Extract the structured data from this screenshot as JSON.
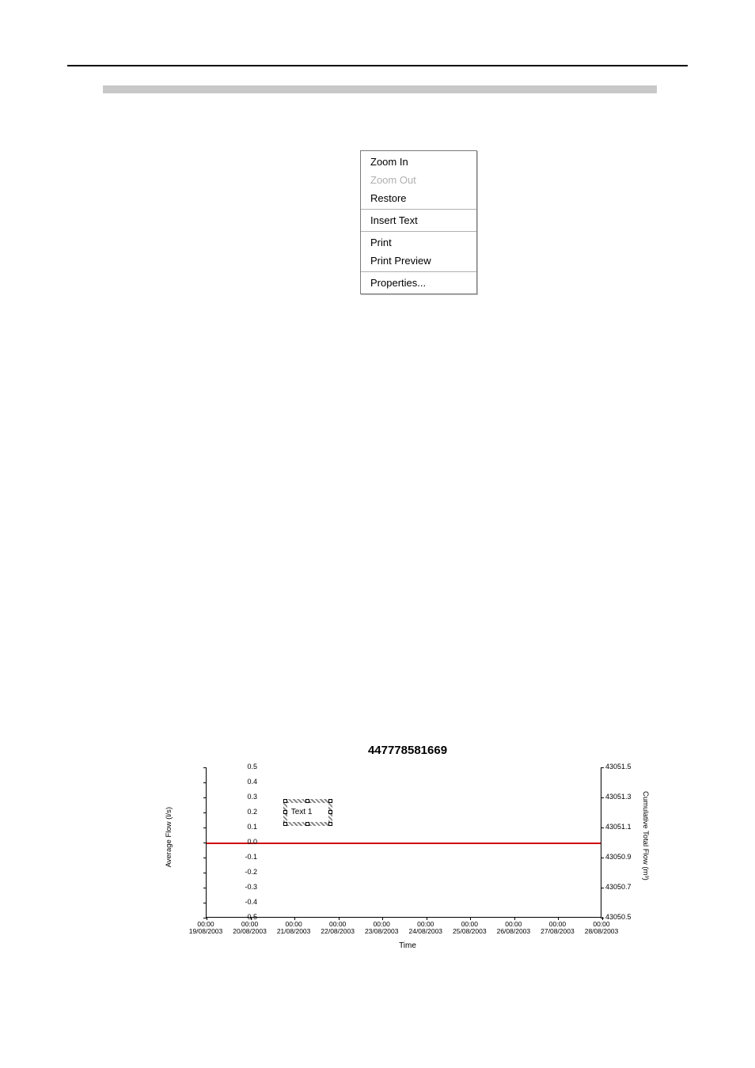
{
  "context_menu": {
    "groups": [
      [
        {
          "label": "Zoom In",
          "disabled": false
        },
        {
          "label": "Zoom Out",
          "disabled": true
        },
        {
          "label": "Restore",
          "disabled": false
        }
      ],
      [
        {
          "label": "Insert Text",
          "disabled": false
        }
      ],
      [
        {
          "label": "Print",
          "disabled": false
        },
        {
          "label": "Print Preview",
          "disabled": false
        }
      ],
      [
        {
          "label": "Properties...",
          "disabled": false
        }
      ]
    ]
  },
  "chart": {
    "type": "line",
    "title": "447778581669",
    "title_fontsize": 15,
    "xlabel": "Time",
    "ylabel_left": "Average Flow (l/s)",
    "ylabel_right": "Cumulative Total Flow (m³)",
    "background_color": "#ffffff",
    "axis_color": "#000000",
    "line_color": "#d00000",
    "text_color": "#000000",
    "tick_fontsize": 9,
    "label_fontsize": 10,
    "left_axis": {
      "ylim": [
        -0.5,
        0.5
      ],
      "ticks": [
        0.5,
        0.4,
        0.3,
        0.2,
        0.1,
        0.0,
        -0.1,
        -0.2,
        -0.3,
        -0.4,
        -0.5
      ]
    },
    "right_axis": {
      "ylim": [
        43050.5,
        43051.5
      ],
      "ticks": [
        43051.5,
        43051.3,
        43051.1,
        43050.9,
        43050.7,
        43050.5
      ]
    },
    "x_axis": {
      "ticks": [
        {
          "time": "00:00",
          "date": "19/08/2003"
        },
        {
          "time": "00:00",
          "date": "20/08/2003"
        },
        {
          "time": "00:00",
          "date": "21/08/2003"
        },
        {
          "time": "00:00",
          "date": "22/08/2003"
        },
        {
          "time": "00:00",
          "date": "23/08/2003"
        },
        {
          "time": "00:00",
          "date": "24/08/2003"
        },
        {
          "time": "00:00",
          "date": "25/08/2003"
        },
        {
          "time": "00:00",
          "date": "26/08/2003"
        },
        {
          "time": "00:00",
          "date": "27/08/2003"
        },
        {
          "time": "00:00",
          "date": "28/08/2003"
        }
      ]
    },
    "series": {
      "y_value": 0.0
    },
    "text_annotation": {
      "label": "Text 1",
      "x_index": 2.3,
      "y_value": 0.2
    }
  }
}
